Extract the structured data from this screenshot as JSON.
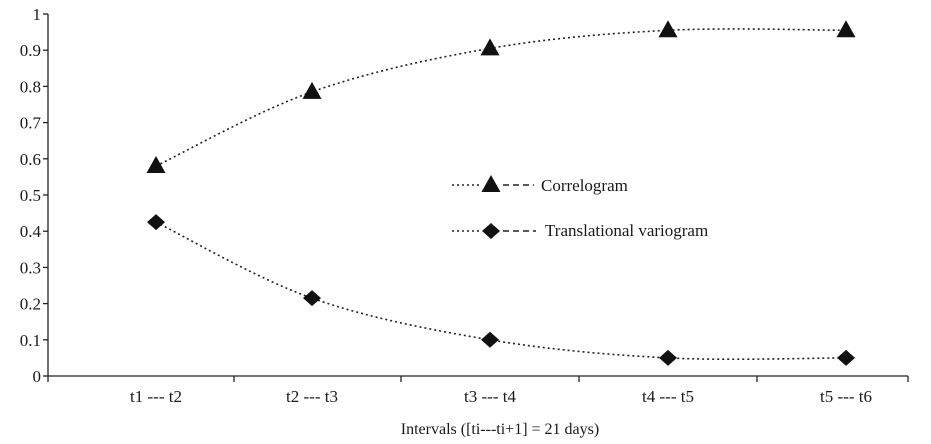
{
  "chart_data": {
    "type": "line",
    "title": "",
    "xlabel": "Intervals ([ti---ti+1] = 21 days)",
    "ylabel": "",
    "ylim": [
      0,
      1
    ],
    "yticks": [
      "0",
      "0.1",
      "0.2",
      "0.3",
      "0.4",
      "0.5",
      "0.6",
      "0.7",
      "0.8",
      "0.9",
      "1"
    ],
    "categories": [
      "t1 --- t2",
      "t2 --- t3",
      "t3 --- t4",
      "t4 --- t5",
      "t5 --- t6"
    ],
    "grid": false,
    "legend_position": "center-right",
    "series": [
      {
        "name": "Correlogram",
        "marker": "triangle",
        "values": [
          0.58,
          0.785,
          0.905,
          0.955,
          0.955
        ]
      },
      {
        "name": "Translational variogram",
        "marker": "diamond",
        "values": [
          0.425,
          0.215,
          0.1,
          0.05,
          0.05
        ]
      }
    ]
  }
}
